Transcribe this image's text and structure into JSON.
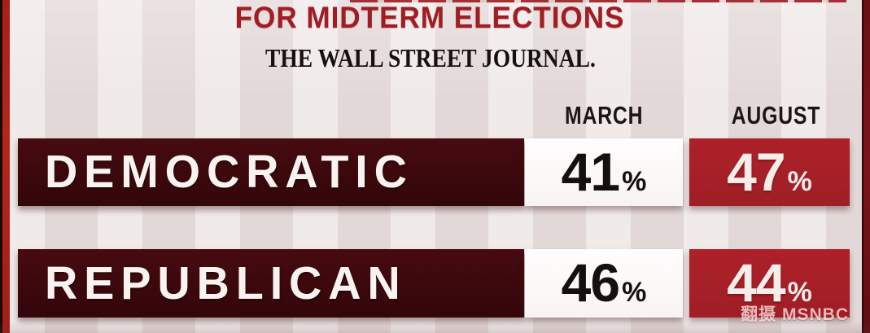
{
  "title": "FOR MIDTERM ELECTIONS",
  "source": "THE WALL STREET JOURNAL.",
  "columns": {
    "march": "MARCH",
    "august": "AUGUST"
  },
  "rows": [
    {
      "label": "DEMOCRATIC",
      "march_value": "41",
      "august_value": "47",
      "unit": "%"
    },
    {
      "label": "REPUBLICAN",
      "march_value": "46",
      "august_value": "44",
      "unit": "%"
    }
  ],
  "watermark": "翻摄 MSNBC",
  "colors": {
    "title_red": "#a11d24",
    "label_maroon": "#3a080c",
    "august_crimson": "#a52027",
    "march_cell_white": "#fbf8f7",
    "background": "#e9e1e0",
    "left_border_red": "#b1241c",
    "right_border_maroon": "#701318"
  },
  "chart_data": {
    "type": "table",
    "title": "FOR MIDTERM ELECTIONS",
    "subtitle": "Poll source: THE WALL STREET JOURNAL.",
    "categories": [
      "MARCH",
      "AUGUST"
    ],
    "series": [
      {
        "name": "DEMOCRATIC",
        "values": [
          41,
          47
        ]
      },
      {
        "name": "REPUBLICAN",
        "values": [
          46,
          44
        ]
      }
    ],
    "unit": "percent",
    "notes": "TV graphic table: party preference for midterm elections, March vs August; August values highlighted in crimson."
  }
}
